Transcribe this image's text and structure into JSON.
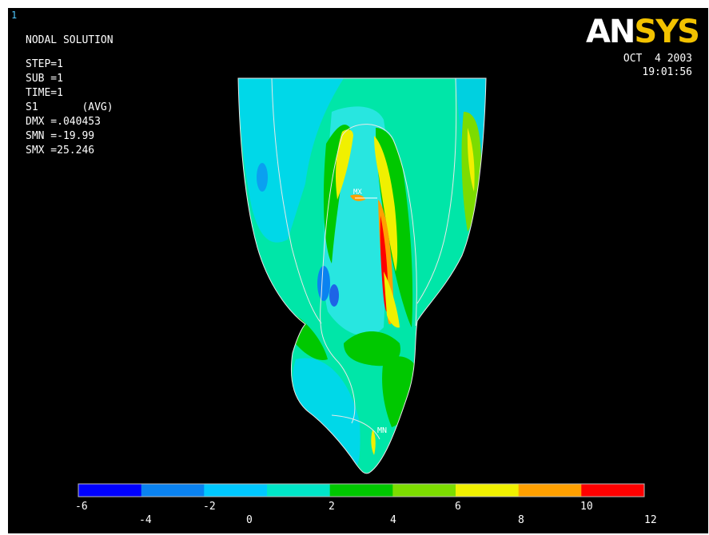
{
  "window_number": "1",
  "header": {
    "title": "NODAL SOLUTION",
    "lines": [
      "STEP=1",
      "SUB =1",
      "TIME=1",
      "S1       (AVG)",
      "DMX =.040453",
      "SMN =-19.99",
      "SMX =25.246"
    ]
  },
  "logo": {
    "part1": "AN",
    "part2": "SYS",
    "part1_color": "#ffffff",
    "part2_color": "#f2c200"
  },
  "datetime": {
    "date": "OCT  4 2003",
    "time": "19:01:56"
  },
  "markers": {
    "max_label": "MX",
    "min_label": "MN"
  },
  "legend": {
    "colors": [
      "#0000ff",
      "#0a82f0",
      "#00c8ff",
      "#00e6c8",
      "#00c800",
      "#7cdc00",
      "#f0f000",
      "#ffa000",
      "#ff0000"
    ],
    "upper_ticks": [
      "-6",
      "-2",
      "2",
      "6",
      "10"
    ],
    "lower_ticks": [
      "-4",
      "0",
      "4",
      "8",
      "12"
    ]
  }
}
